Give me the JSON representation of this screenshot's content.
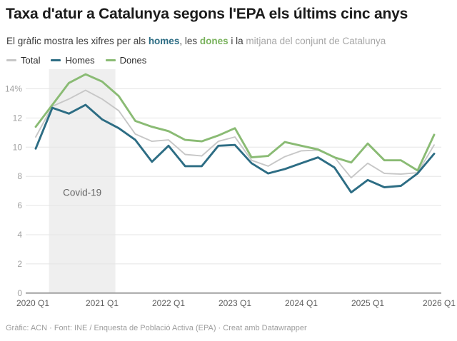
{
  "header": {
    "title": "Taxa d'atur a Catalunya segons l'EPA els últims cinc anys",
    "subtitle_parts": [
      {
        "text": "El gràfic mostra les xifres per als ",
        "style": "plain"
      },
      {
        "text": "homes",
        "style": "homes"
      },
      {
        "text": ", les ",
        "style": "plain"
      },
      {
        "text": "dones",
        "style": "dones"
      },
      {
        "text": " i la ",
        "style": "plain"
      },
      {
        "text": "mitjana del conjunt de Catalunya",
        "style": "muted"
      }
    ]
  },
  "legend": [
    {
      "label": "Total",
      "color": "#c7c7c7"
    },
    {
      "label": "Homes",
      "color": "#2d6d84"
    },
    {
      "label": "Dones",
      "color": "#8abb74"
    }
  ],
  "chart_data": {
    "type": "line",
    "title": "Taxa d'atur a Catalunya segons l'EPA els últims cinc anys",
    "x_axis_tick_labels": [
      "2020 Q1",
      "2021 Q1",
      "2022 Q1",
      "2023 Q1",
      "2024 Q1",
      "2025 Q1",
      "2026 Q1"
    ],
    "y_axis_tick_labels": [
      "0",
      "2",
      "4",
      "6",
      "8",
      "10",
      "12",
      "14%"
    ],
    "yticks": [
      0,
      2,
      4,
      6,
      8,
      10,
      12,
      14
    ],
    "ylim": [
      0,
      15.5
    ],
    "grid": "horizontal",
    "legend_position": "top-left",
    "categories": [
      "2020 Q1",
      "2020 Q2",
      "2020 Q3",
      "2020 Q4",
      "2021 Q1",
      "2021 Q2",
      "2021 Q3",
      "2021 Q4",
      "2022 Q1",
      "2022 Q2",
      "2022 Q3",
      "2022 Q4",
      "2023 Q1",
      "2023 Q2",
      "2023 Q3",
      "2023 Q4",
      "2024 Q1",
      "2024 Q2",
      "2024 Q3",
      "2024 Q4",
      "2025 Q1",
      "2025 Q2",
      "2025 Q3",
      "2025 Q4",
      "2026 Q1"
    ],
    "series": [
      {
        "name": "Total",
        "color": "#c7c7c7",
        "values": [
          10.7,
          12.8,
          13.3,
          13.9,
          13.3,
          12.5,
          10.9,
          10.4,
          10.5,
          9.5,
          9.4,
          10.4,
          10.7,
          9.1,
          8.7,
          9.35,
          9.75,
          9.8,
          9.3,
          7.9,
          8.9,
          8.2,
          8.15,
          8.25,
          10.15
        ]
      },
      {
        "name": "Homes",
        "color": "#2d6d84",
        "values": [
          9.9,
          12.7,
          12.3,
          12.9,
          11.9,
          11.3,
          10.5,
          9.0,
          10.1,
          8.7,
          8.7,
          10.1,
          10.15,
          8.9,
          8.2,
          8.5,
          8.9,
          9.3,
          8.6,
          6.9,
          7.75,
          7.25,
          7.35,
          8.2,
          9.55
        ]
      },
      {
        "name": "Dones",
        "color": "#8abb74",
        "values": [
          11.4,
          12.9,
          14.4,
          15.0,
          14.5,
          13.5,
          11.8,
          11.4,
          11.1,
          10.5,
          10.4,
          10.8,
          11.3,
          9.3,
          9.4,
          10.35,
          10.1,
          9.85,
          9.3,
          8.95,
          10.25,
          9.1,
          9.1,
          8.4,
          10.85
        ]
      }
    ],
    "annotation": {
      "label": "Covid-19",
      "from_quarter_index": 0.8,
      "to_quarter_index": 4.8,
      "label_quarter_index": 2.8,
      "label_value": 6.9,
      "band_color": "#efefef",
      "label_color": "#646464"
    }
  },
  "footer": {
    "text": "Gràfic: ACN · Font: INE / Enquesta de Població Activa (EPA) · Creat amb Datawrapper"
  }
}
